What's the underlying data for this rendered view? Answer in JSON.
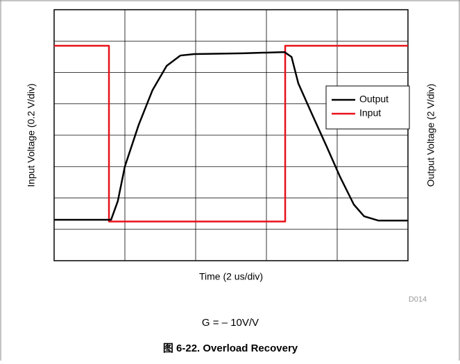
{
  "chart_data": {
    "type": "line",
    "xlabel": "Time (2 us/div)",
    "ylabel": "Input Voltage (0.2 V/div)",
    "y2label": "Output Voltage (2 V/div)",
    "annotations": [
      "D014",
      "G = – 10V/V"
    ],
    "caption": "图 6-22. Overload Recovery",
    "xlim": [
      0,
      10
    ],
    "xticks": [
      0,
      2,
      4,
      6,
      8,
      10
    ],
    "ylim": [
      0,
      1.6
    ],
    "yticks": [
      0,
      0.2,
      0.4,
      0.6,
      0.8,
      1,
      1.2,
      1.4,
      1.6
    ],
    "y2lim": [
      0,
      16
    ],
    "grid": true,
    "legend": "right",
    "series": [
      {
        "name": "Output",
        "color": "#000000",
        "axis": "y2",
        "x": [
          0,
          1.61,
          1.8,
          2.0,
          2.39,
          2.78,
          3.18,
          3.57,
          3.96,
          5.33,
          6.51,
          6.71,
          6.9,
          7.29,
          7.69,
          8.08,
          8.47,
          8.76,
          9.16,
          10
        ],
        "values": [
          2.61,
          2.61,
          3.8,
          6.01,
          8.66,
          10.87,
          12.42,
          13.08,
          13.17,
          13.22,
          13.3,
          12.99,
          11.31,
          9.33,
          7.34,
          5.35,
          3.58,
          2.83,
          2.56,
          2.56
        ]
      },
      {
        "name": "Input",
        "color": "#e8101a",
        "x": [
          0,
          1.55,
          1.55,
          6.53,
          6.53,
          10
        ],
        "values": [
          1.37,
          1.37,
          0.25,
          0.25,
          1.37,
          1.37
        ]
      }
    ]
  }
}
